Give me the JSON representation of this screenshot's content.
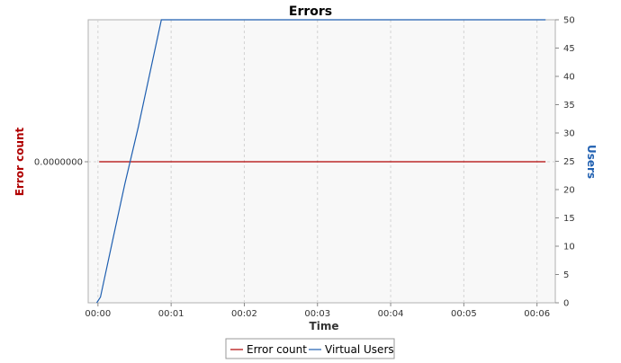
{
  "chart_data": {
    "type": "line",
    "title": "Errors",
    "xlabel": "Time",
    "ylabel_left": "Error count",
    "ylabel_right": "Users",
    "x_ticks": [
      "00:00",
      "00:01",
      "00:02",
      "00:03",
      "00:04",
      "00:05",
      "00:06"
    ],
    "xlim_seconds": [
      -8,
      375
    ],
    "y_left_ticks": [
      "0.0000000"
    ],
    "y_right_ticks": [
      0,
      5,
      10,
      15,
      20,
      25,
      30,
      35,
      40,
      45,
      50
    ],
    "y_right_lim": [
      0,
      50
    ],
    "grid": true,
    "legend_position": "bottom",
    "series": [
      {
        "name": "Error count",
        "axis": "left",
        "color": "#b00000",
        "x_seconds": [
          1,
          367
        ],
        "y": [
          0,
          0
        ]
      },
      {
        "name": "Virtual Users",
        "axis": "right",
        "color": "#1f5fb0",
        "x_seconds": [
          -1,
          2,
          2,
          12,
          12,
          22,
          22,
          33,
          33,
          43,
          43,
          52,
          52,
          367
        ],
        "y": [
          0,
          1,
          1,
          11,
          11,
          21,
          21,
          31,
          31,
          41,
          41,
          50,
          50,
          50
        ]
      }
    ],
    "colors": {
      "error_axis": "#b00000",
      "users_axis": "#1f5fb0",
      "plot_background": "#f8f8f8",
      "grid": "#d3d3d3"
    }
  }
}
